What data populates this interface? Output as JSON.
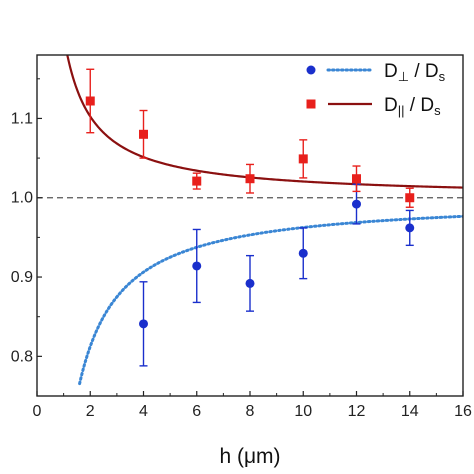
{
  "chart_data": {
    "type": "scatter",
    "title": "",
    "xlabel": "h (μm)",
    "ylabel": "",
    "xlim": [
      0,
      16
    ],
    "ylim": [
      0.75,
      1.18
    ],
    "x_ticks": [
      0,
      2,
      4,
      6,
      8,
      10,
      12,
      14,
      16
    ],
    "y_ticks": [
      0.8,
      0.9,
      1.0,
      1.1
    ],
    "x_tick_labels": [
      "0",
      "2",
      "4",
      "6",
      "8",
      "10",
      "12",
      "14",
      "16"
    ],
    "y_tick_labels": [
      "0.8",
      "0.9",
      "1.0",
      "1.1"
    ],
    "reference_line": {
      "y": 1.0,
      "style": "dashed",
      "color": "#555555"
    },
    "legend": {
      "placement": "top-right"
    },
    "series": [
      {
        "name": "D⊥ / Ds",
        "legend_main": "D",
        "legend_sub1": "⊥",
        "legend_mid": " / D",
        "legend_sub2": "s",
        "marker": "circle",
        "color": "#1a2fcc",
        "curve_color": "#3a86d4",
        "curve_style": "dotted",
        "x": [
          4,
          6,
          8,
          10,
          12,
          14
        ],
        "y": [
          0.841,
          0.914,
          0.892,
          0.93,
          0.992,
          0.962
        ],
        "err_low": [
          0.053,
          0.046,
          0.035,
          0.032,
          0.025,
          0.022
        ],
        "err_high": [
          0.053,
          0.046,
          0.035,
          0.032,
          0.025,
          0.022
        ]
      },
      {
        "name": "D∥ / Ds",
        "legend_main": "D",
        "legend_sub1": "||",
        "legend_mid": " / D",
        "legend_sub2": "s",
        "marker": "square",
        "color": "#e8201c",
        "curve_color": "#8b1010",
        "curve_style": "solid",
        "x": [
          2,
          4,
          6,
          8,
          10,
          12,
          14
        ],
        "y": [
          1.122,
          1.08,
          1.021,
          1.024,
          1.049,
          1.024,
          1.0
        ],
        "err_low": [
          0.04,
          0.03,
          0.01,
          0.018,
          0.024,
          0.016,
          0.012
        ],
        "err_high": [
          0.04,
          0.03,
          0.01,
          0.018,
          0.024,
          0.016,
          0.012
        ]
      }
    ]
  }
}
